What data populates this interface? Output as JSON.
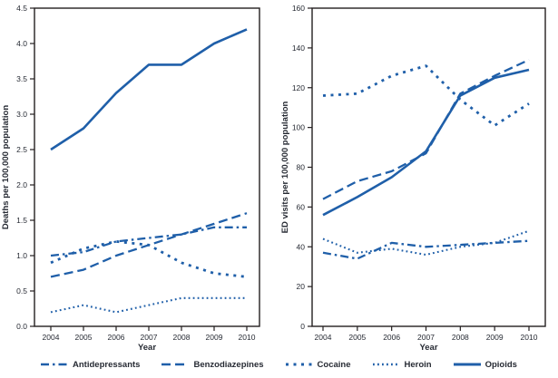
{
  "colors": {
    "line": "#1f5fa9",
    "axis": "#231f20",
    "text": "#262a33"
  },
  "legend": {
    "items": [
      {
        "label": "Antidepressants",
        "dash": "dashdot"
      },
      {
        "label": "Benzodiazepines",
        "dash": "dash"
      },
      {
        "label": "Cocaine",
        "dash": "squaredot"
      },
      {
        "label": "Heroin",
        "dash": "dot"
      },
      {
        "label": "Opioids",
        "dash": "solid"
      }
    ]
  },
  "chart_data": [
    {
      "type": "line",
      "title": "",
      "xlabel": "Year",
      "ylabel": "Deaths per 100,000 population",
      "x": [
        2004,
        2005,
        2006,
        2007,
        2008,
        2009,
        2010
      ],
      "ylim": [
        0,
        4.5
      ],
      "ytick_step": 0.5,
      "grid": false,
      "legend_position": "bottom",
      "series": [
        {
          "name": "Antidepressants",
          "dash": "dashdot",
          "values": [
            1.0,
            1.05,
            1.2,
            1.25,
            1.3,
            1.4,
            1.4
          ]
        },
        {
          "name": "Benzodiazepines",
          "dash": "dash",
          "values": [
            0.7,
            0.8,
            1.0,
            1.15,
            1.3,
            1.45,
            1.6
          ]
        },
        {
          "name": "Cocaine",
          "dash": "squaredot",
          "values": [
            0.9,
            1.1,
            1.2,
            1.15,
            0.9,
            0.75,
            0.7
          ]
        },
        {
          "name": "Heroin",
          "dash": "dot",
          "values": [
            0.2,
            0.3,
            0.2,
            0.3,
            0.4,
            0.4,
            0.4
          ]
        },
        {
          "name": "Opioids",
          "dash": "solid",
          "values": [
            2.5,
            2.8,
            3.3,
            3.7,
            3.7,
            4.0,
            4.2
          ]
        }
      ]
    },
    {
      "type": "line",
      "title": "",
      "xlabel": "Year",
      "ylabel": "ED visits per 100,000 population",
      "x": [
        2004,
        2005,
        2006,
        2007,
        2008,
        2009,
        2010
      ],
      "ylim": [
        0,
        160
      ],
      "ytick_step": 20,
      "grid": false,
      "legend_position": "bottom",
      "series": [
        {
          "name": "Antidepressants",
          "dash": "dashdot",
          "values": [
            37,
            34,
            42,
            40,
            41,
            42,
            43
          ]
        },
        {
          "name": "Benzodiazepines",
          "dash": "dash",
          "values": [
            64,
            73,
            78,
            87,
            117,
            126,
            134
          ]
        },
        {
          "name": "Cocaine",
          "dash": "squaredot",
          "values": [
            116,
            117,
            126,
            131,
            114,
            101,
            112
          ]
        },
        {
          "name": "Heroin",
          "dash": "dot",
          "values": [
            44,
            37,
            39,
            36,
            40,
            42,
            48
          ]
        },
        {
          "name": "Opioids",
          "dash": "solid",
          "values": [
            56,
            65,
            75,
            88,
            116,
            125,
            129
          ]
        }
      ]
    }
  ]
}
